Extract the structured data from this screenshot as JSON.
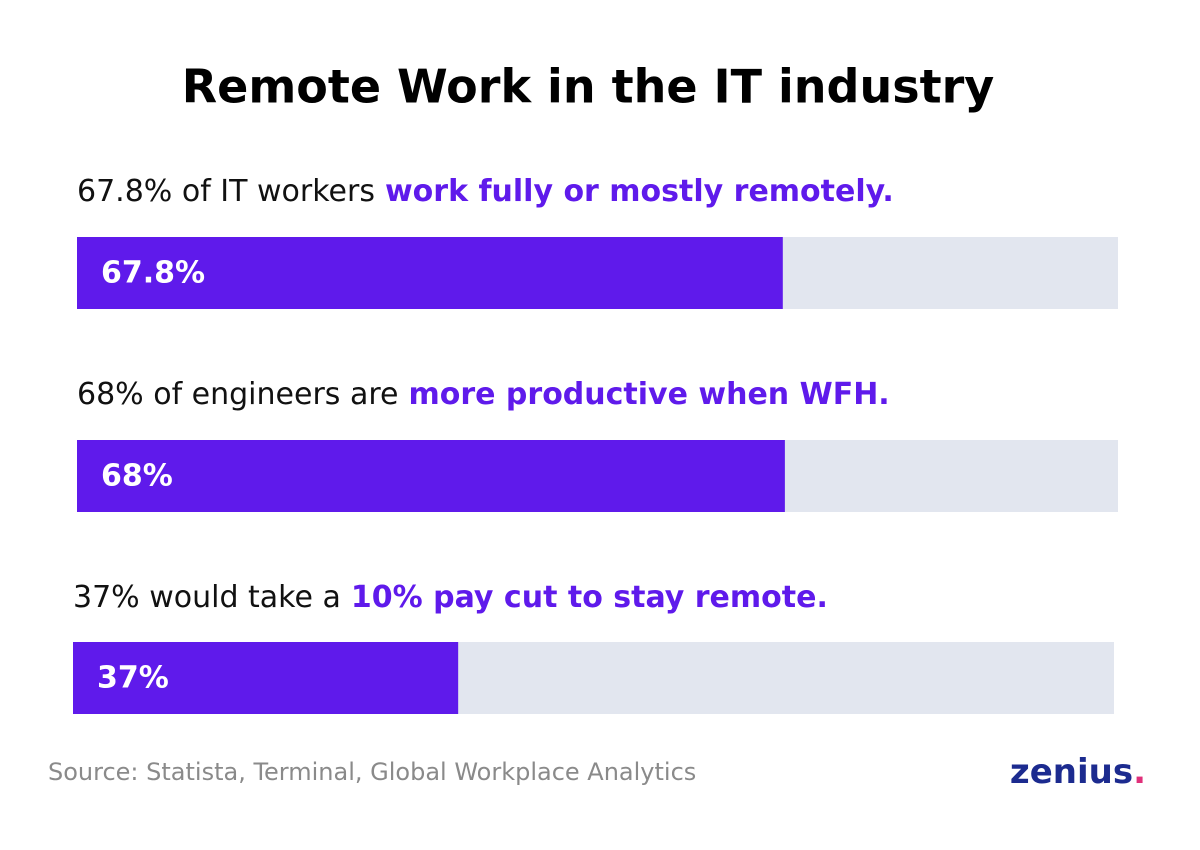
{
  "chart_data": {
    "type": "bar",
    "orientation": "horizontal",
    "title": "Remote Work in the IT industry",
    "categories": [
      "67.8% of IT workers",
      "68% of engineers are",
      "37% would take a"
    ],
    "highlights": [
      "work fully or mostly remotely.",
      "more productive when WFH.",
      "10% pay cut to stay remote."
    ],
    "values": [
      67.8,
      68,
      37
    ],
    "value_labels": [
      "67.8%",
      "68%",
      "37%"
    ],
    "xlim": [
      0,
      100
    ],
    "color": "#5f1aeb",
    "track_color": "#e2e6ef",
    "highlight_color": "#5f1aeb",
    "source": "Source: Statista, Terminal, Global Workplace Analytics",
    "brand": "zenius",
    "brand_mark": "."
  }
}
